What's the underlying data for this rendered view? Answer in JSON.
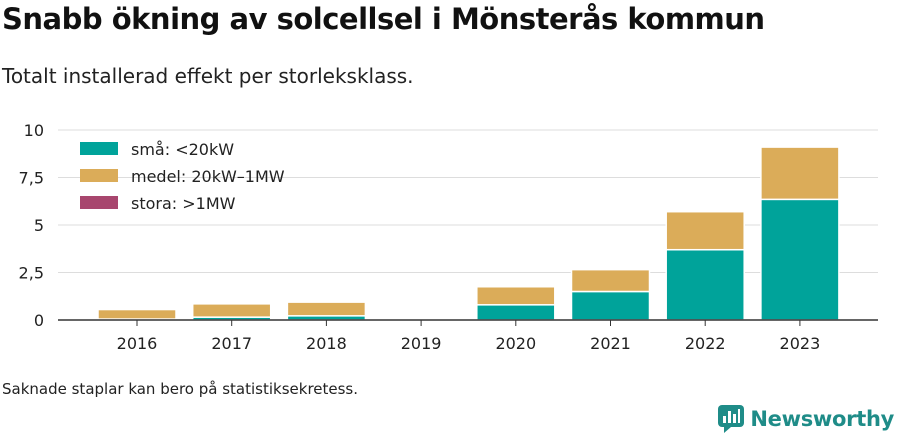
{
  "header": {
    "title": "Snabb ökning av solcellsel i Mönsterås kommun",
    "subtitle": "Totalt installerad effekt per storleksklass."
  },
  "footer": {
    "note": "Saknade staplar kan bero på statistiksekretess.",
    "brand": "Newsworthy"
  },
  "chart_data": {
    "type": "bar",
    "stacked": true,
    "categories": [
      "2016",
      "2017",
      "2018",
      "2019",
      "2020",
      "2021",
      "2022",
      "2023"
    ],
    "series": [
      {
        "name": "små: <20kW",
        "color": "#00a39a",
        "values": [
          0.05,
          0.15,
          0.22,
          null,
          0.8,
          1.5,
          3.7,
          6.35
        ]
      },
      {
        "name": "medel: 20kW–1MW",
        "color": "#dbac59",
        "values": [
          0.5,
          0.7,
          0.72,
          null,
          0.95,
          1.15,
          2.0,
          2.75
        ]
      },
      {
        "name": "stora: >1MW",
        "color": "#a8466e",
        "values": [
          0,
          0,
          0,
          null,
          0,
          0,
          0,
          0
        ]
      }
    ],
    "y_ticks": [
      0,
      2.5,
      5,
      7.5,
      10
    ],
    "y_tick_labels": [
      "0",
      "2,5",
      "5",
      "7,5",
      "10"
    ],
    "ylim": [
      0,
      10
    ],
    "grid": true,
    "legend_position": "top-left",
    "xlabel": "",
    "ylabel": ""
  }
}
